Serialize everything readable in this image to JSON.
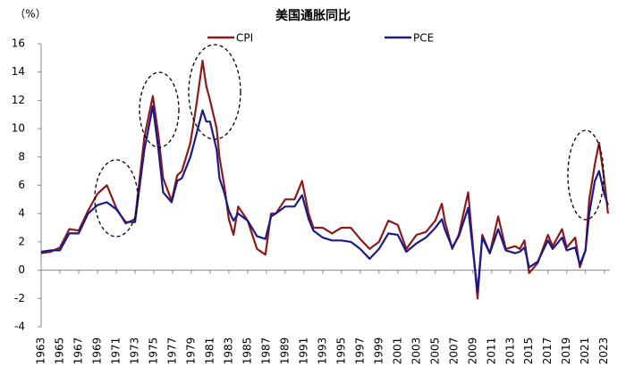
{
  "chart_data": {
    "type": "line",
    "title": "美国通胀同比",
    "y_label": "（%）",
    "x": [
      1963,
      1964,
      1965,
      1966,
      1967,
      1968,
      1969,
      1970,
      1971,
      1972,
      1973,
      1974,
      1974.9,
      1975.5,
      1976,
      1976.9,
      1977.5,
      1978,
      1978.9,
      1979.5,
      1980.2,
      1980.6,
      1981,
      1981.7,
      1982,
      1982.5,
      1983,
      1983.5,
      1984,
      1985,
      1986,
      1986.9,
      1987.5,
      1988,
      1989,
      1990,
      1990.8,
      1991.5,
      1992,
      1993,
      1994,
      1995,
      1996,
      1997,
      1998,
      1999,
      2000,
      2001,
      2001.9,
      2003,
      2004,
      2005,
      2005.7,
      2006,
      2006.8,
      2007.5,
      2008.5,
      2009.5,
      2010,
      2010.8,
      2011.7,
      2012.5,
      2013.5,
      2014,
      2014.5,
      2015,
      2015.9,
      2017,
      2017.5,
      2018.5,
      2019,
      2019.9,
      2020.4,
      2021,
      2021.4,
      2022,
      2022.45,
      2023,
      2023.4
    ],
    "series": [
      {
        "name": "CPI",
        "color": "#8b1a1a",
        "values": [
          1.2,
          1.3,
          1.6,
          2.9,
          2.8,
          4.2,
          5.4,
          6.0,
          4.4,
          3.3,
          3.6,
          9.4,
          12.3,
          9.5,
          6.5,
          4.9,
          6.7,
          7.0,
          9.0,
          11.5,
          14.8,
          13,
          12,
          10,
          8,
          6,
          3.6,
          2.5,
          4.5,
          3.5,
          1.5,
          1.1,
          4,
          4,
          5,
          5,
          6.3,
          4,
          3,
          3,
          2.6,
          3,
          3,
          2.2,
          1.5,
          2,
          3.5,
          3.2,
          1.5,
          2.5,
          2.7,
          3.5,
          4.7,
          3.5,
          1.5,
          2.5,
          5.5,
          -2.0,
          2.5,
          1.2,
          3.8,
          1.5,
          1.7,
          1.5,
          2.1,
          -0.2,
          0.5,
          2.5,
          1.7,
          2.9,
          1.6,
          2.3,
          0.2,
          1.4,
          5,
          7.5,
          9.0,
          6.4,
          4
        ]
      },
      {
        "name": "PCE",
        "color": "#1a1a8b",
        "values": [
          1.3,
          1.4,
          1.4,
          2.6,
          2.6,
          4,
          4.6,
          4.8,
          4.3,
          3.4,
          3.4,
          8.5,
          11.6,
          8.5,
          5.5,
          4.8,
          6.3,
          6.5,
          8,
          9.5,
          11.3,
          10.5,
          10.5,
          8.5,
          6.5,
          5.5,
          4.2,
          3.5,
          4,
          3.5,
          2.4,
          2.2,
          3.8,
          4,
          4.5,
          4.5,
          5.3,
          3.6,
          2.8,
          2.3,
          2.1,
          2.1,
          2,
          1.5,
          0.8,
          1.5,
          2.6,
          2.5,
          1.3,
          1.9,
          2.3,
          3,
          3.6,
          2.9,
          1.6,
          2.4,
          4.4,
          -1.5,
          2.3,
          1.2,
          2.9,
          1.4,
          1.2,
          1.3,
          1.6,
          0.2,
          0.6,
          2.1,
          1.5,
          2.3,
          1.4,
          1.6,
          0.4,
          1.4,
          4,
          6.3,
          7,
          5.4,
          4.6
        ]
      }
    ],
    "xlim": [
      1963,
      2023.6
    ],
    "xticks": [
      1963,
      1965,
      1967,
      1969,
      1971,
      1973,
      1975,
      1977,
      1979,
      1981,
      1983,
      1985,
      1987,
      1989,
      1991,
      1993,
      1995,
      1997,
      1999,
      2001,
      2003,
      2005,
      2007,
      2009,
      2011,
      2013,
      2015,
      2017,
      2019,
      2021,
      2023
    ],
    "ylim": [
      -4,
      16
    ],
    "yticks": [
      -4,
      -2,
      0,
      2,
      4,
      6,
      8,
      10,
      12,
      14,
      16
    ]
  }
}
